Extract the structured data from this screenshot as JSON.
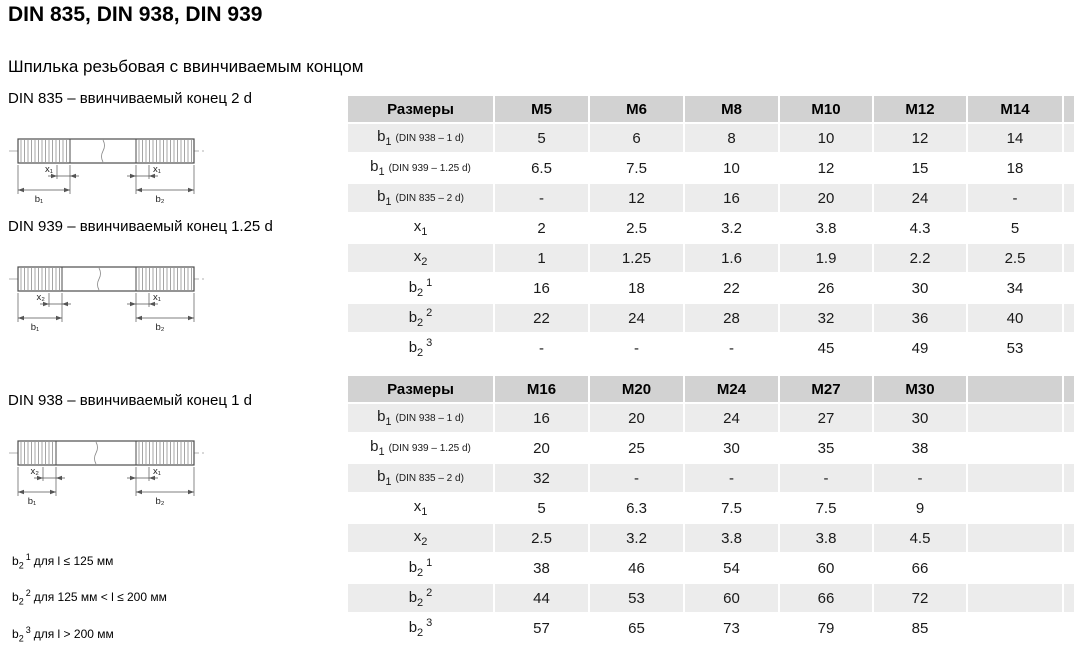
{
  "page": {
    "title": "DIN 835, DIN 938, DIN 939",
    "subtitle": "Шпилька резьбовая с ввинчиваемым концом"
  },
  "diagrams": [
    {
      "caption": "DIN 835 – ввинчиваемый конец 2 d",
      "left_top": "x₁",
      "right_top": "x₁",
      "left_bottom": "b₁",
      "right_bottom": "b₂"
    },
    {
      "caption": "DIN 939 – ввинчиваемый конец 1.25 d",
      "left_top": "x₂",
      "right_top": "x₁",
      "left_bottom": "b₁",
      "right_bottom": "b₂"
    },
    {
      "caption": "DIN 938 – ввинчиваемый конец 1 d",
      "left_top": "x₂",
      "right_top": "x₁",
      "left_bottom": "b₁",
      "right_bottom": "b₂"
    }
  ],
  "footnotes": [
    {
      "base": "b",
      "sub": "2",
      "sup": "1",
      "text": "для l ≤ 125 мм"
    },
    {
      "base": "b",
      "sub": "2",
      "sup": "2",
      "text": "для 125 мм < l ≤ 200 мм"
    },
    {
      "base": "b",
      "sub": "2",
      "sup": "3",
      "text": "для l > 200 мм"
    }
  ],
  "tables": [
    {
      "header": [
        "Размеры",
        "M5",
        "M6",
        "M8",
        "M10",
        "M12",
        "M14",
        ""
      ],
      "rows": [
        {
          "label": {
            "base": "b",
            "sub": "1",
            "note": "(DIN 938 – 1 d)"
          },
          "values": [
            "5",
            "6",
            "8",
            "10",
            "12",
            "14",
            ""
          ]
        },
        {
          "label": {
            "base": "b",
            "sub": "1",
            "note": "(DIN 939 – 1.25 d)"
          },
          "values": [
            "6.5",
            "7.5",
            "10",
            "12",
            "15",
            "18",
            ""
          ]
        },
        {
          "label": {
            "base": "b",
            "sub": "1",
            "note": "(DIN 835 – 2 d)"
          },
          "values": [
            "-",
            "12",
            "16",
            "20",
            "24",
            "-",
            ""
          ]
        },
        {
          "label": {
            "base": "x",
            "sub": "1"
          },
          "values": [
            "2",
            "2.5",
            "3.2",
            "3.8",
            "4.3",
            "5",
            ""
          ]
        },
        {
          "label": {
            "base": "x",
            "sub": "2"
          },
          "values": [
            "1",
            "1.25",
            "1.6",
            "1.9",
            "2.2",
            "2.5",
            ""
          ]
        },
        {
          "label": {
            "base": "b",
            "sub": "2",
            "sup": "1"
          },
          "values": [
            "16",
            "18",
            "22",
            "26",
            "30",
            "34",
            ""
          ]
        },
        {
          "label": {
            "base": "b",
            "sub": "2",
            "sup": "2"
          },
          "values": [
            "22",
            "24",
            "28",
            "32",
            "36",
            "40",
            ""
          ]
        },
        {
          "label": {
            "base": "b",
            "sub": "2",
            "sup": "3"
          },
          "values": [
            "-",
            "-",
            "-",
            "45",
            "49",
            "53",
            ""
          ]
        }
      ]
    },
    {
      "header": [
        "Размеры",
        "M16",
        "M20",
        "M24",
        "M27",
        "M30",
        "",
        ""
      ],
      "rows": [
        {
          "label": {
            "base": "b",
            "sub": "1",
            "note": "(DIN 938 – 1 d)"
          },
          "values": [
            "16",
            "20",
            "24",
            "27",
            "30",
            "",
            ""
          ]
        },
        {
          "label": {
            "base": "b",
            "sub": "1",
            "note": "(DIN 939 – 1.25 d)"
          },
          "values": [
            "20",
            "25",
            "30",
            "35",
            "38",
            "",
            ""
          ]
        },
        {
          "label": {
            "base": "b",
            "sub": "1",
            "note": "(DIN 835 – 2 d)"
          },
          "values": [
            "32",
            "-",
            "-",
            "-",
            "-",
            "",
            ""
          ]
        },
        {
          "label": {
            "base": "x",
            "sub": "1"
          },
          "values": [
            "5",
            "6.3",
            "7.5",
            "7.5",
            "9",
            "",
            ""
          ]
        },
        {
          "label": {
            "base": "x",
            "sub": "2"
          },
          "values": [
            "2.5",
            "3.2",
            "3.8",
            "3.8",
            "4.5",
            "",
            ""
          ]
        },
        {
          "label": {
            "base": "b",
            "sub": "2",
            "sup": "1"
          },
          "values": [
            "38",
            "46",
            "54",
            "60",
            "66",
            "",
            ""
          ]
        },
        {
          "label": {
            "base": "b",
            "sub": "2",
            "sup": "2"
          },
          "values": [
            "44",
            "53",
            "60",
            "66",
            "72",
            "",
            ""
          ]
        },
        {
          "label": {
            "base": "b",
            "sub": "2",
            "sup": "3"
          },
          "values": [
            "57",
            "65",
            "73",
            "79",
            "85",
            "",
            ""
          ]
        }
      ]
    }
  ],
  "colors": {
    "header_bg": "#d2d2d2",
    "row_alt_bg": "#ececec",
    "row_bg": "#ffffff",
    "grid": "#ffffff",
    "text": "#1a1a1a"
  }
}
